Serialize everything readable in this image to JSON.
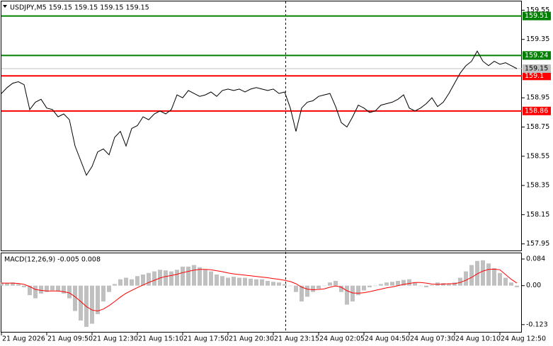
{
  "chart_data": [
    {
      "type": "line",
      "title": "USDJPY,M5  159.15 159.15 159.15 159.15",
      "xlim": [
        0,
        92
      ],
      "ylim": [
        157.9,
        159.61
      ],
      "yticks": [
        159.55,
        159.35,
        158.95,
        158.75,
        158.55,
        158.35,
        158.15,
        157.95
      ],
      "series": [
        {
          "color": "#000000",
          "values": [
            158.98,
            159.02,
            159.05,
            159.06,
            159.04,
            158.87,
            158.92,
            158.94,
            158.88,
            158.87,
            158.82,
            158.84,
            158.8,
            158.62,
            158.52,
            158.42,
            158.48,
            158.58,
            158.6,
            158.56,
            158.68,
            158.72,
            158.62,
            158.74,
            158.76,
            158.82,
            158.8,
            158.84,
            158.86,
            158.84,
            158.87,
            158.97,
            158.95,
            159.0,
            158.98,
            158.96,
            158.97,
            158.99,
            158.96,
            159.0,
            159.01,
            159.0,
            159.01,
            158.99,
            159.01,
            159.02,
            159.01,
            159.0,
            159.01,
            158.98,
            158.99,
            158.88,
            158.72,
            158.88,
            158.92,
            158.93,
            158.96,
            158.97,
            158.98,
            158.89,
            158.78,
            158.75,
            158.82,
            158.9,
            158.88,
            158.85,
            158.86,
            158.9,
            158.91,
            158.92,
            158.94,
            158.97,
            158.88,
            158.86,
            158.88,
            158.91,
            158.95,
            158.89,
            158.92,
            158.98,
            159.05,
            159.12,
            159.17,
            159.2,
            159.27,
            159.2,
            159.17,
            159.2,
            159.18,
            159.19,
            159.17,
            159.15
          ]
        }
      ],
      "levels": [
        {
          "value": 159.51,
          "color": "#008000"
        },
        {
          "value": 159.24,
          "color": "#008000"
        },
        {
          "value": 159.1,
          "color": "#ff0000"
        },
        {
          "value": 158.86,
          "color": "#ff0000"
        }
      ],
      "last_price": {
        "value": 159.15,
        "color": "#c0c0c0"
      }
    },
    {
      "type": "macd",
      "title": "MACD(12,26,9) -0.005 0.008",
      "xlim": [
        0,
        92
      ],
      "ylim": [
        -0.148,
        0.102
      ],
      "yticks": [
        0.084,
        {
          "value": 0,
          "label": "0.00"
        },
        -0.123
      ],
      "xticks": [
        {
          "value": 0,
          "label": "21 Aug 2026"
        },
        {
          "value": 8,
          "label": "21 Aug 09:50"
        },
        {
          "value": 16,
          "label": "21 Aug 12:30"
        },
        {
          "value": 24,
          "label": "21 Aug 15:10"
        },
        {
          "value": 32,
          "label": "21 Aug 17:50"
        },
        {
          "value": 40,
          "label": "21 Aug 20:30"
        },
        {
          "value": 48,
          "label": "21 Aug 23:15"
        },
        {
          "value": 56,
          "label": "24 Aug 02:05"
        },
        {
          "value": 64,
          "label": "24 Aug 04:50"
        },
        {
          "value": 72,
          "label": "24 Aug 07:30"
        },
        {
          "value": 80,
          "label": "24 Aug 10:10"
        },
        {
          "value": 88,
          "label": "24 Aug 12:50"
        }
      ],
      "series": [
        {
          "type": "bar",
          "color": "#c0c0c0",
          "values": [
            0.01,
            0.008,
            0.01,
            0.005,
            -0.005,
            -0.03,
            -0.04,
            -0.025,
            -0.02,
            -0.015,
            -0.018,
            -0.025,
            -0.04,
            -0.08,
            -0.11,
            -0.13,
            -0.12,
            -0.09,
            -0.05,
            -0.02,
            0.005,
            0.02,
            0.025,
            0.02,
            0.03,
            0.035,
            0.04,
            0.045,
            0.05,
            0.048,
            0.045,
            0.05,
            0.06,
            0.06,
            0.065,
            0.058,
            0.05,
            0.045,
            0.035,
            0.03,
            0.025,
            0.028,
            0.025,
            0.025,
            0.022,
            0.02,
            0.02,
            0.015,
            0.012,
            0.01,
            0.005,
            0.0,
            -0.02,
            -0.05,
            -0.035,
            -0.02,
            -0.01,
            0.0,
            0.01,
            0.015,
            -0.02,
            -0.06,
            -0.05,
            -0.03,
            -0.015,
            -0.005,
            0.0,
            0.005,
            0.01,
            0.012,
            0.015,
            0.018,
            0.02,
            0.01,
            0.0,
            -0.005,
            0.002,
            0.01,
            0.008,
            0.006,
            0.01,
            0.025,
            0.045,
            0.065,
            0.078,
            0.08,
            0.07,
            0.055,
            0.04,
            0.025,
            0.01,
            -0.005
          ]
        },
        {
          "type": "line",
          "color": "#ff0000",
          "values": [
            0.008,
            0.008,
            0.008,
            0.007,
            0.004,
            -0.003,
            -0.012,
            -0.015,
            -0.017,
            -0.017,
            -0.017,
            -0.019,
            -0.023,
            -0.035,
            -0.05,
            -0.066,
            -0.077,
            -0.08,
            -0.074,
            -0.063,
            -0.05,
            -0.036,
            -0.024,
            -0.015,
            -0.006,
            0.002,
            0.01,
            0.017,
            0.024,
            0.029,
            0.032,
            0.036,
            0.041,
            0.045,
            0.049,
            0.051,
            0.051,
            0.05,
            0.047,
            0.044,
            0.04,
            0.037,
            0.035,
            0.033,
            0.031,
            0.029,
            0.027,
            0.025,
            0.022,
            0.02,
            0.017,
            0.013,
            0.006,
            -0.005,
            -0.011,
            -0.013,
            -0.012,
            -0.01,
            -0.005,
            -0.001,
            -0.005,
            -0.016,
            -0.023,
            -0.024,
            -0.022,
            -0.019,
            -0.015,
            -0.011,
            -0.007,
            -0.004,
            0.0,
            0.004,
            0.007,
            0.01,
            0.01,
            0.008,
            0.005,
            0.004,
            0.005,
            0.006,
            0.006,
            0.01,
            0.017,
            0.026,
            0.037,
            0.046,
            0.051,
            0.052,
            0.05,
            0.035,
            0.02,
            0.008
          ]
        }
      ]
    }
  ]
}
